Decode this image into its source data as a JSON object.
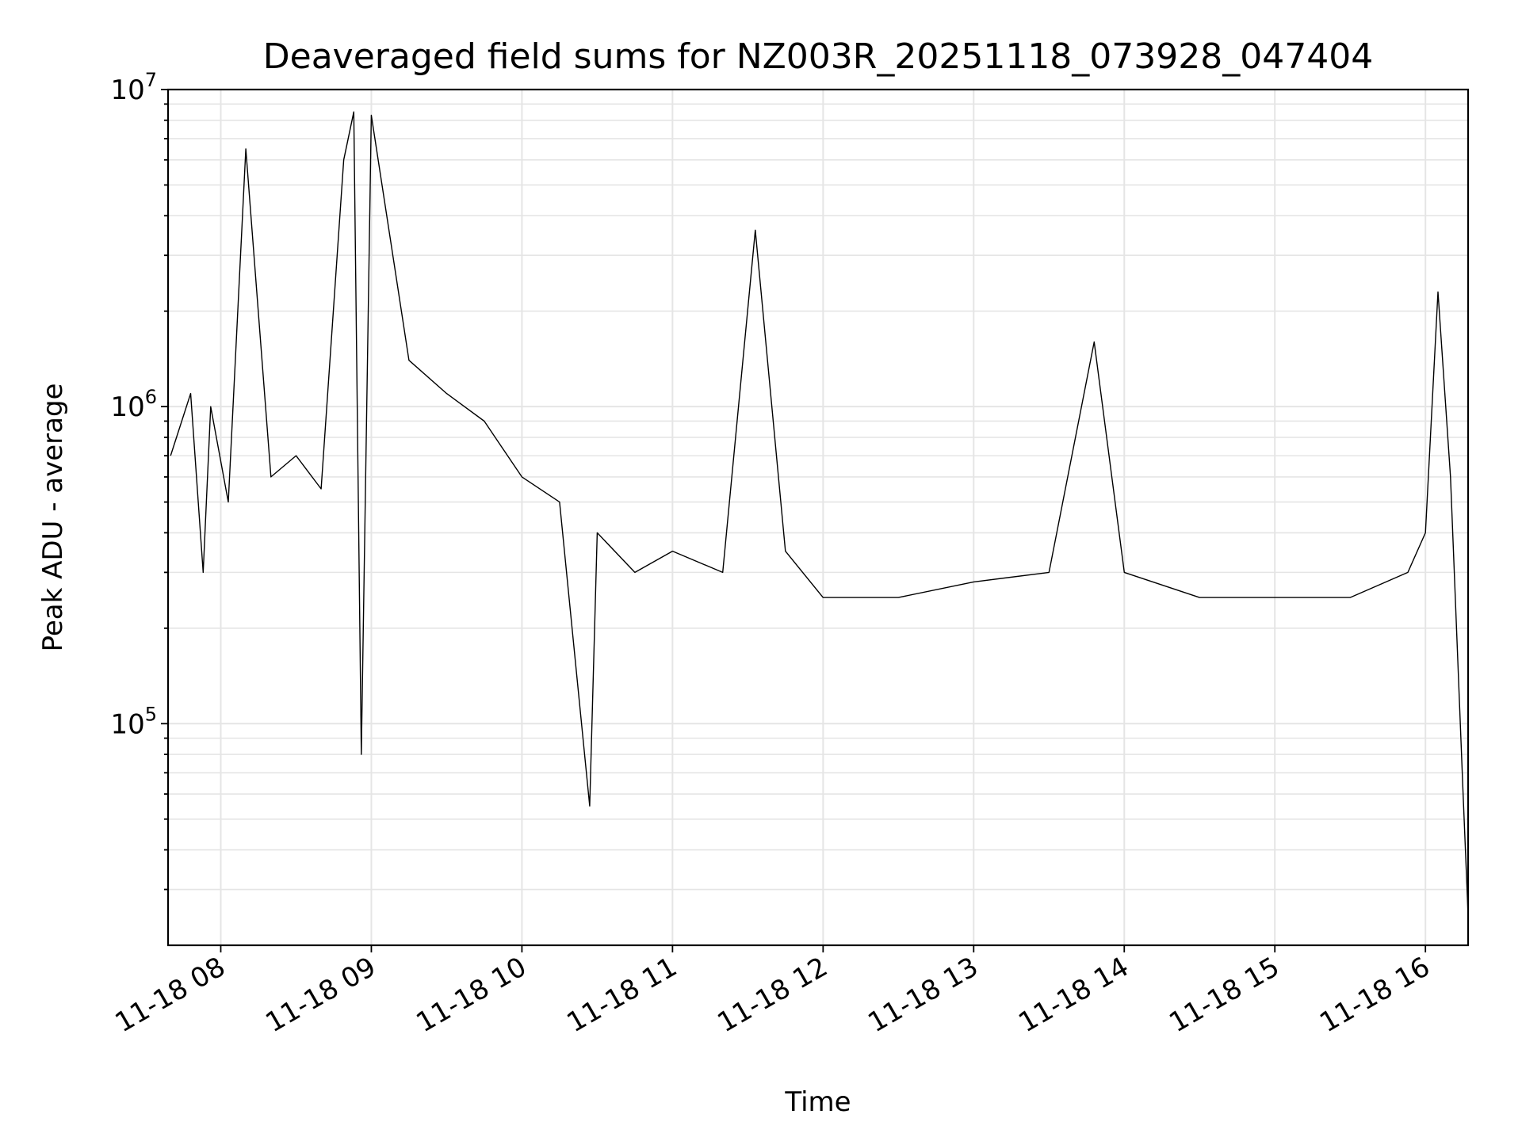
{
  "chart_data": {
    "type": "line",
    "title": "Deaveraged field sums for NZ003R_20251118_073928_047404",
    "xlabel": "Time",
    "ylabel": "Peak ADU - average",
    "y_scale": "log",
    "xlim": [
      "2025-11-18 07:39",
      "2025-11-18 16:17"
    ],
    "ylim": [
      20000,
      10000000
    ],
    "grid": true,
    "line_color": "#000000",
    "x_ticks": [
      {
        "value": "2025-11-18 08:00",
        "label": "11-18 08"
      },
      {
        "value": "2025-11-18 09:00",
        "label": "11-18 09"
      },
      {
        "value": "2025-11-18 10:00",
        "label": "11-18 10"
      },
      {
        "value": "2025-11-18 11:00",
        "label": "11-18 11"
      },
      {
        "value": "2025-11-18 12:00",
        "label": "11-18 12"
      },
      {
        "value": "2025-11-18 13:00",
        "label": "11-18 13"
      },
      {
        "value": "2025-11-18 14:00",
        "label": "11-18 14"
      },
      {
        "value": "2025-11-18 15:00",
        "label": "11-18 15"
      },
      {
        "value": "2025-11-18 16:00",
        "label": "11-18 16"
      }
    ],
    "y_ticks": [
      {
        "value": 100000,
        "base": "10",
        "exp": "5"
      },
      {
        "value": 1000000,
        "base": "10",
        "exp": "6"
      },
      {
        "value": 10000000,
        "base": "10",
        "exp": "7"
      }
    ],
    "series": [
      {
        "x": [
          "2025-11-18 07:40",
          "2025-11-18 07:48",
          "2025-11-18 07:53",
          "2025-11-18 07:56",
          "2025-11-18 08:03",
          "2025-11-18 08:10",
          "2025-11-18 08:20",
          "2025-11-18 08:30",
          "2025-11-18 08:40",
          "2025-11-18 08:49",
          "2025-11-18 08:53",
          "2025-11-18 08:56",
          "2025-11-18 09:00",
          "2025-11-18 09:15",
          "2025-11-18 09:30",
          "2025-11-18 09:45",
          "2025-11-18 10:00",
          "2025-11-18 10:15",
          "2025-11-18 10:27",
          "2025-11-18 10:30",
          "2025-11-18 10:45",
          "2025-11-18 11:00",
          "2025-11-18 11:20",
          "2025-11-18 11:33",
          "2025-11-18 11:45",
          "2025-11-18 12:00",
          "2025-11-18 12:30",
          "2025-11-18 13:00",
          "2025-11-18 13:30",
          "2025-11-18 13:48",
          "2025-11-18 14:00",
          "2025-11-18 14:30",
          "2025-11-18 15:00",
          "2025-11-18 15:30",
          "2025-11-18 15:53",
          "2025-11-18 16:00",
          "2025-11-18 16:05",
          "2025-11-18 16:10",
          "2025-11-18 16:15",
          "2025-11-18 16:17"
        ],
        "y": [
          700000,
          1100000,
          300000,
          1000000,
          500000,
          6500000,
          600000,
          700000,
          550000,
          6000000,
          8500000,
          80000,
          8300000,
          1400000,
          1100000,
          900000,
          600000,
          500000,
          55000,
          400000,
          300000,
          350000,
          300000,
          3600000,
          350000,
          250000,
          250000,
          280000,
          300000,
          1600000,
          300000,
          250000,
          250000,
          250000,
          300000,
          400000,
          2300000,
          600000,
          60000,
          25000
        ]
      }
    ]
  }
}
